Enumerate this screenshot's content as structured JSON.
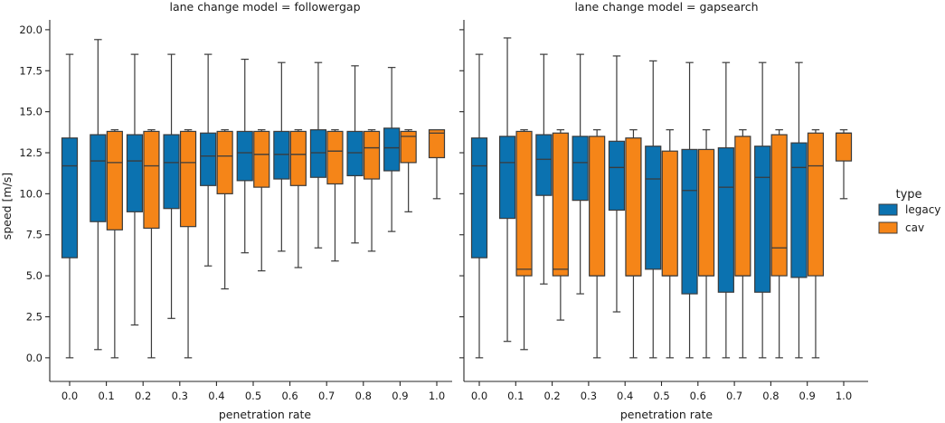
{
  "chart_data": {
    "type": "boxplot",
    "ylabel": "speed [m/s]",
    "xlabel": "penetration rate",
    "ylim": [
      -1,
      20.6
    ],
    "yticks": [
      "0.0",
      "2.5",
      "5.0",
      "7.5",
      "10.0",
      "12.5",
      "15.0",
      "17.5",
      "20.0"
    ],
    "categories": [
      "0.0",
      "0.1",
      "0.2",
      "0.3",
      "0.4",
      "0.5",
      "0.6",
      "0.7",
      "0.8",
      "0.9",
      "1.0"
    ],
    "colors": {
      "legacy": "#0b72b0",
      "cav": "#f58518"
    },
    "legend": {
      "title": "type",
      "entries": [
        "legacy",
        "cav"
      ],
      "position": "right"
    },
    "panels": [
      {
        "title": "lane change model = followergap",
        "legacy": [
          {
            "lo": 0.0,
            "q1": 6.1,
            "med": 11.7,
            "q3": 13.4,
            "hi": 18.5
          },
          {
            "lo": 0.5,
            "q1": 8.3,
            "med": 12.0,
            "q3": 13.6,
            "hi": 19.4
          },
          {
            "lo": 2.0,
            "q1": 8.9,
            "med": 12.0,
            "q3": 13.6,
            "hi": 18.5
          },
          {
            "lo": 2.4,
            "q1": 9.1,
            "med": 11.9,
            "q3": 13.6,
            "hi": 18.5
          },
          {
            "lo": 5.6,
            "q1": 10.5,
            "med": 12.3,
            "q3": 13.7,
            "hi": 18.5
          },
          {
            "lo": 6.4,
            "q1": 10.8,
            "med": 12.5,
            "q3": 13.8,
            "hi": 18.2
          },
          {
            "lo": 6.5,
            "q1": 10.9,
            "med": 12.4,
            "q3": 13.8,
            "hi": 18.0
          },
          {
            "lo": 6.7,
            "q1": 11.0,
            "med": 12.5,
            "q3": 13.9,
            "hi": 18.0
          },
          {
            "lo": 7.0,
            "q1": 11.1,
            "med": 12.5,
            "q3": 13.8,
            "hi": 17.8
          },
          {
            "lo": 7.7,
            "q1": 11.4,
            "med": 12.8,
            "q3": 14.0,
            "hi": 17.7
          },
          null
        ],
        "cav": [
          null,
          {
            "lo": 0.0,
            "q1": 7.8,
            "med": 11.9,
            "q3": 13.8,
            "hi": 13.9
          },
          {
            "lo": 0.0,
            "q1": 7.9,
            "med": 11.7,
            "q3": 13.8,
            "hi": 13.9
          },
          {
            "lo": 0.0,
            "q1": 8.0,
            "med": 11.9,
            "q3": 13.8,
            "hi": 13.9
          },
          {
            "lo": 4.2,
            "q1": 10.0,
            "med": 12.3,
            "q3": 13.8,
            "hi": 13.9
          },
          {
            "lo": 5.3,
            "q1": 10.4,
            "med": 12.4,
            "q3": 13.8,
            "hi": 13.9
          },
          {
            "lo": 5.5,
            "q1": 10.5,
            "med": 12.4,
            "q3": 13.8,
            "hi": 13.9
          },
          {
            "lo": 5.9,
            "q1": 10.6,
            "med": 12.6,
            "q3": 13.8,
            "hi": 13.9
          },
          {
            "lo": 6.5,
            "q1": 10.9,
            "med": 12.8,
            "q3": 13.8,
            "hi": 13.9
          },
          {
            "lo": 8.9,
            "q1": 11.9,
            "med": 13.5,
            "q3": 13.8,
            "hi": 13.9
          },
          {
            "lo": 9.7,
            "q1": 12.2,
            "med": 13.7,
            "q3": 13.9,
            "hi": 13.9
          }
        ]
      },
      {
        "title": "lane change model = gapsearch",
        "legacy": [
          {
            "lo": 0.0,
            "q1": 6.1,
            "med": 11.7,
            "q3": 13.4,
            "hi": 18.5
          },
          {
            "lo": 1.0,
            "q1": 8.5,
            "med": 11.9,
            "q3": 13.5,
            "hi": 19.5
          },
          {
            "lo": 4.5,
            "q1": 9.9,
            "med": 12.1,
            "q3": 13.6,
            "hi": 18.5
          },
          {
            "lo": 3.9,
            "q1": 9.6,
            "med": 11.9,
            "q3": 13.5,
            "hi": 18.5
          },
          {
            "lo": 2.8,
            "q1": 9.0,
            "med": 11.6,
            "q3": 13.2,
            "hi": 18.4
          },
          {
            "lo": 0.0,
            "q1": 5.4,
            "med": 10.9,
            "q3": 12.9,
            "hi": 18.1
          },
          {
            "lo": 0.0,
            "q1": 3.9,
            "med": 10.2,
            "q3": 12.7,
            "hi": 18.0
          },
          {
            "lo": 0.0,
            "q1": 4.0,
            "med": 10.4,
            "q3": 12.8,
            "hi": 18.0
          },
          {
            "lo": 0.0,
            "q1": 4.0,
            "med": 11.0,
            "q3": 12.9,
            "hi": 18.0
          },
          {
            "lo": 0.0,
            "q1": 4.9,
            "med": 11.6,
            "q3": 13.1,
            "hi": 18.0
          },
          null
        ],
        "cav": [
          null,
          {
            "lo": 0.5,
            "q1": 5.0,
            "med": 5.4,
            "q3": 13.8,
            "hi": 13.9
          },
          {
            "lo": 2.3,
            "q1": 5.0,
            "med": 5.4,
            "q3": 13.7,
            "hi": 13.9
          },
          {
            "lo": 0.0,
            "q1": 5.0,
            "med": 5.0,
            "q3": 13.5,
            "hi": 13.9
          },
          {
            "lo": 0.0,
            "q1": 5.0,
            "med": 5.0,
            "q3": 13.4,
            "hi": 13.9
          },
          {
            "lo": 0.0,
            "q1": 5.0,
            "med": 5.0,
            "q3": 12.6,
            "hi": 13.9
          },
          {
            "lo": 0.0,
            "q1": 5.0,
            "med": 5.0,
            "q3": 12.7,
            "hi": 13.9
          },
          {
            "lo": 0.0,
            "q1": 5.0,
            "med": 5.0,
            "q3": 13.5,
            "hi": 13.9
          },
          {
            "lo": 0.0,
            "q1": 5.0,
            "med": 6.7,
            "q3": 13.6,
            "hi": 13.9
          },
          {
            "lo": 0.0,
            "q1": 5.0,
            "med": 11.7,
            "q3": 13.7,
            "hi": 13.9
          },
          {
            "lo": 9.7,
            "q1": 12.0,
            "med": 13.7,
            "q3": 13.7,
            "hi": 13.9
          }
        ]
      }
    ]
  }
}
